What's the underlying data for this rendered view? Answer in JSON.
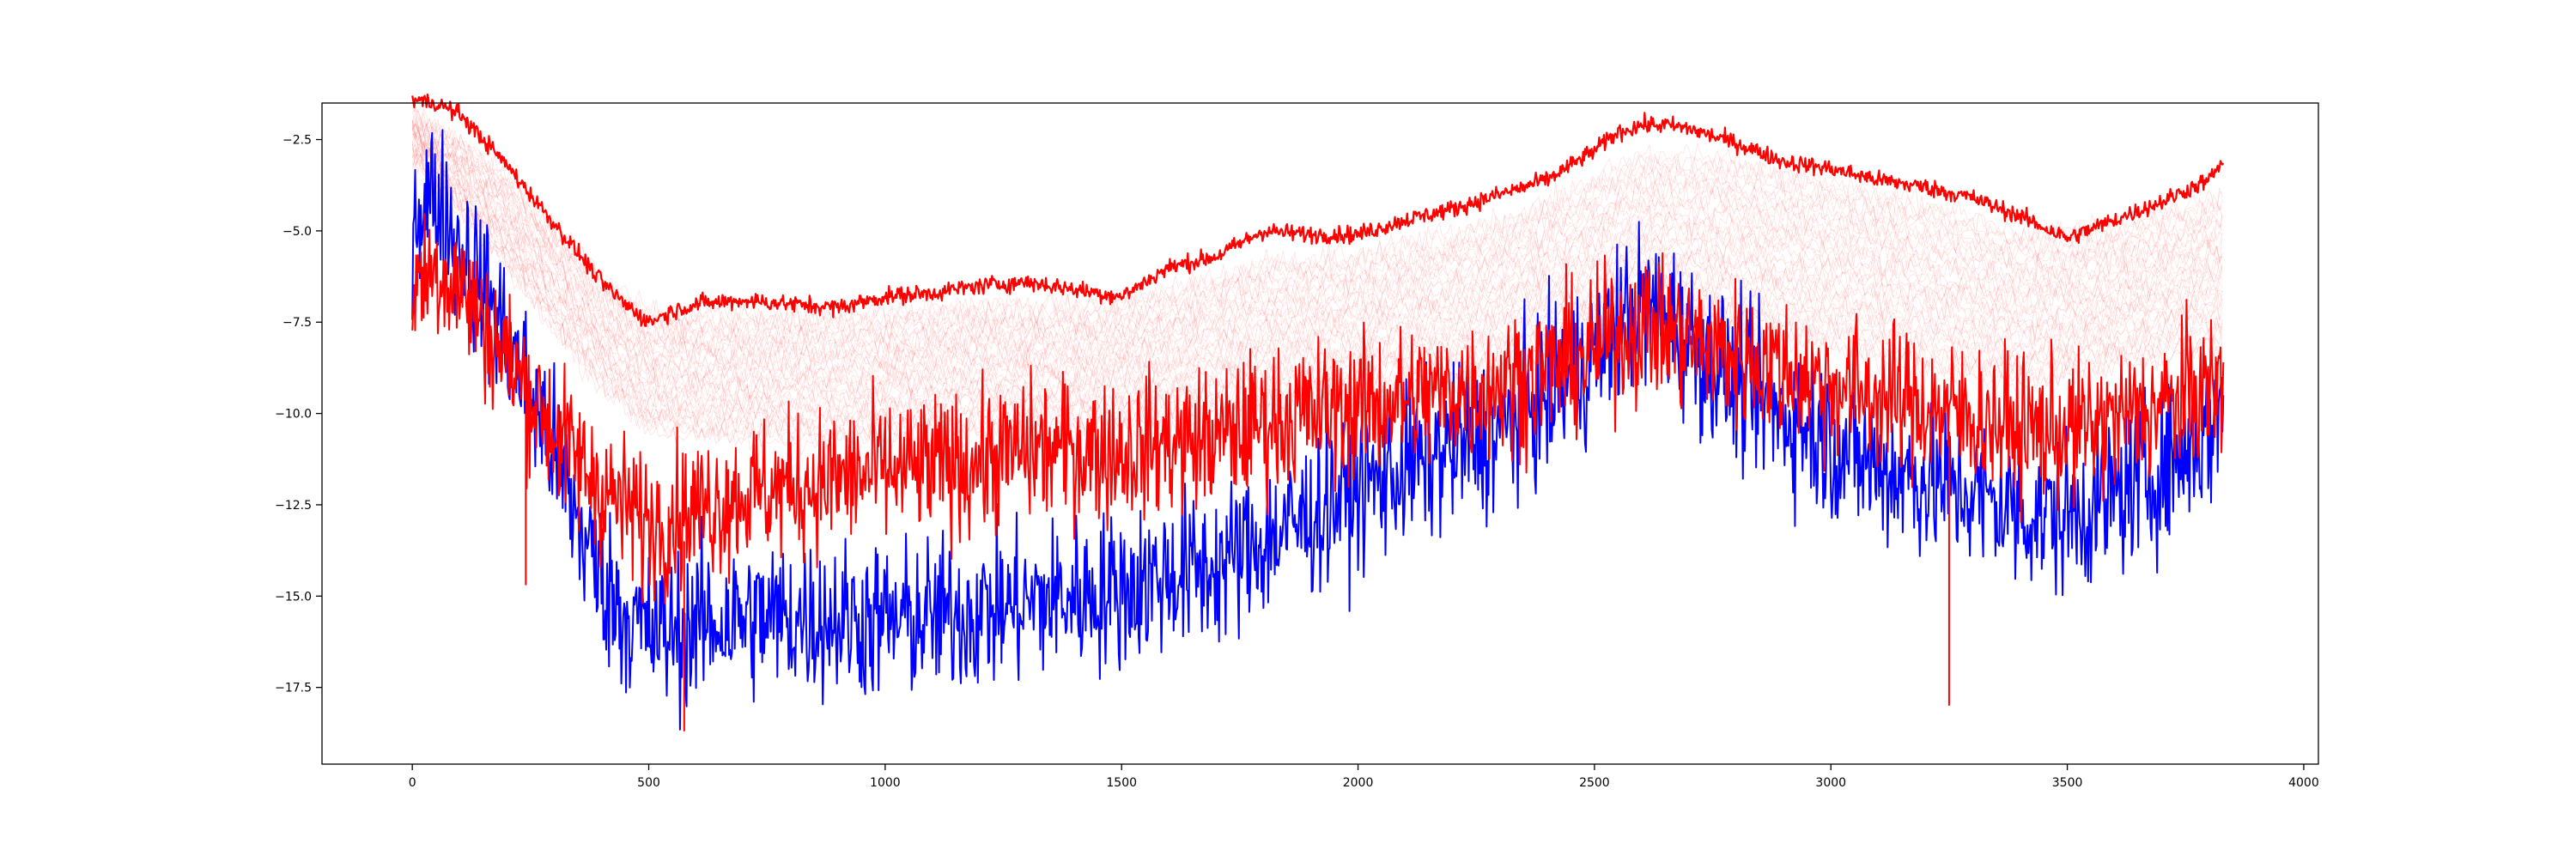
{
  "chart_data": {
    "type": "line",
    "title": "",
    "xlabel": "",
    "ylabel": "",
    "xlim": [
      -191,
      4031
    ],
    "ylim": [
      -19.6,
      -1.5
    ],
    "grid": false,
    "legend": "none",
    "x_ticks": [
      0,
      500,
      1000,
      1500,
      2000,
      2500,
      3000,
      3500,
      4000
    ],
    "x_tick_labels": [
      "0",
      "500",
      "1000",
      "1500",
      "2000",
      "2500",
      "3000",
      "3500",
      "4000"
    ],
    "y_ticks": [
      -2.5,
      -5.0,
      -7.5,
      -10.0,
      -12.5,
      -15.0,
      -17.5
    ],
    "y_tick_labels": [
      "−2.5",
      "−5.0",
      "−7.5",
      "−10.0",
      "−12.5",
      "−15.0",
      "−17.5"
    ],
    "colors": {
      "red": "#ff0000",
      "blue": "#0000ff",
      "faint_red": "#ff0000"
    },
    "series": [
      {
        "role": "upper-envelope-red",
        "color": "#ff0000",
        "noise": 0.12,
        "x": [
          0,
          50,
          100,
          150,
          200,
          250,
          300,
          350,
          400,
          450,
          500,
          550,
          600,
          700,
          800,
          900,
          1000,
          1100,
          1200,
          1300,
          1400,
          1500,
          1600,
          1700,
          1800,
          1900,
          2000,
          2100,
          2200,
          2300,
          2400,
          2500,
          2550,
          2600,
          2650,
          2700,
          2800,
          2900,
          3000,
          3100,
          3200,
          3300,
          3400,
          3450,
          3500,
          3600,
          3700,
          3800,
          3830
        ],
        "values": [
          -1.4,
          -1.5,
          -1.8,
          -2.5,
          -3.2,
          -4.0,
          -4.8,
          -5.6,
          -6.4,
          -7.0,
          -7.5,
          -7.2,
          -7.0,
          -6.9,
          -7.0,
          -7.1,
          -6.8,
          -6.7,
          -6.5,
          -6.4,
          -6.6,
          -6.8,
          -6.0,
          -5.7,
          -5.0,
          -5.1,
          -5.1,
          -4.7,
          -4.4,
          -4.0,
          -3.6,
          -2.8,
          -2.3,
          -2.1,
          -2.1,
          -2.2,
          -2.6,
          -3.1,
          -3.3,
          -3.6,
          -3.8,
          -4.1,
          -4.6,
          -4.9,
          -5.2,
          -4.7,
          -4.2,
          -3.6,
          -3.1
        ]
      },
      {
        "role": "noisy-blue",
        "color": "#0000ff",
        "noise": 1.1,
        "x": [
          0,
          50,
          100,
          150,
          200,
          250,
          300,
          350,
          400,
          450,
          500,
          550,
          600,
          700,
          800,
          900,
          1000,
          1100,
          1200,
          1300,
          1400,
          1500,
          1600,
          1700,
          1800,
          1900,
          2000,
          2100,
          2200,
          2300,
          2400,
          2500,
          2550,
          2600,
          2650,
          2700,
          2800,
          2900,
          3000,
          3100,
          3200,
          3300,
          3400,
          3500,
          3600,
          3700,
          3800,
          3830
        ],
        "values": [
          -4.5,
          -4.0,
          -5.5,
          -6.5,
          -8.0,
          -9.5,
          -11.0,
          -13.0,
          -14.5,
          -15.5,
          -16.0,
          -16.0,
          -15.8,
          -15.6,
          -15.6,
          -15.6,
          -15.7,
          -15.6,
          -15.4,
          -15.2,
          -15.0,
          -14.8,
          -14.4,
          -14.2,
          -13.5,
          -12.8,
          -12.0,
          -11.5,
          -11.0,
          -10.5,
          -9.5,
          -8.5,
          -7.5,
          -7.0,
          -7.3,
          -8.0,
          -9.2,
          -10.0,
          -10.8,
          -11.5,
          -11.8,
          -12.2,
          -12.7,
          -12.8,
          -12.3,
          -11.5,
          -10.5,
          -9.5
        ]
      },
      {
        "role": "noisy-red",
        "color": "#ff0000",
        "noise": 1.0,
        "x": [
          0,
          50,
          100,
          150,
          200,
          250,
          300,
          350,
          400,
          450,
          500,
          550,
          600,
          700,
          800,
          900,
          1000,
          1100,
          1200,
          1300,
          1400,
          1500,
          1600,
          1700,
          1800,
          1900,
          2000,
          2100,
          2200,
          2300,
          2400,
          2500,
          2550,
          2600,
          2650,
          2700,
          2800,
          2900,
          3000,
          3100,
          3200,
          3300,
          3400,
          3500,
          3600,
          3700,
          3800,
          3830
        ],
        "values": [
          -6.5,
          -6.0,
          -6.5,
          -7.5,
          -8.5,
          -9.5,
          -10.5,
          -11.3,
          -12.0,
          -12.6,
          -13.0,
          -12.8,
          -12.6,
          -12.2,
          -12.0,
          -11.8,
          -11.6,
          -11.5,
          -11.3,
          -11.0,
          -11.0,
          -11.0,
          -10.8,
          -10.7,
          -10.2,
          -10.0,
          -9.8,
          -9.6,
          -9.4,
          -9.2,
          -8.8,
          -8.3,
          -7.8,
          -7.6,
          -7.7,
          -8.0,
          -8.4,
          -8.8,
          -9.2,
          -9.5,
          -9.8,
          -10.1,
          -10.4,
          -10.5,
          -10.2,
          -9.8,
          -9.3,
          -9.2
        ]
      }
    ],
    "faint_band": {
      "role": "faint-red-ensemble",
      "color": "#ff0000",
      "count": 36,
      "x": [
        0,
        100,
        200,
        300,
        400,
        500,
        600,
        800,
        1000,
        1200,
        1400,
        1600,
        1800,
        2000,
        2200,
        2400,
        2600,
        2800,
        3000,
        3200,
        3400,
        3600,
        3830
      ],
      "top": [
        -1.8,
        -2.5,
        -3.5,
        -4.8,
        -6.2,
        -7.2,
        -7.2,
        -7.2,
        -7.2,
        -6.9,
        -7.0,
        -6.6,
        -5.8,
        -5.6,
        -5.0,
        -4.2,
        -2.8,
        -3.0,
        -3.6,
        -4.2,
        -5.0,
        -4.8,
        -4.0
      ],
      "bottom": [
        -3.0,
        -4.5,
        -6.0,
        -7.8,
        -9.3,
        -10.5,
        -10.7,
        -10.8,
        -10.7,
        -10.6,
        -10.6,
        -10.3,
        -10.0,
        -9.8,
        -9.4,
        -8.6,
        -7.5,
        -7.8,
        -8.3,
        -8.8,
        -9.3,
        -8.8,
        -8.3
      ]
    },
    "red_spikes": [
      {
        "x": 3250,
        "values": [
          -10.5,
          -18.0
        ]
      },
      {
        "x": 575,
        "values": [
          -13.5,
          -18.7
        ]
      },
      {
        "x": 240,
        "values": [
          -10.0,
          -14.7
        ]
      }
    ]
  }
}
